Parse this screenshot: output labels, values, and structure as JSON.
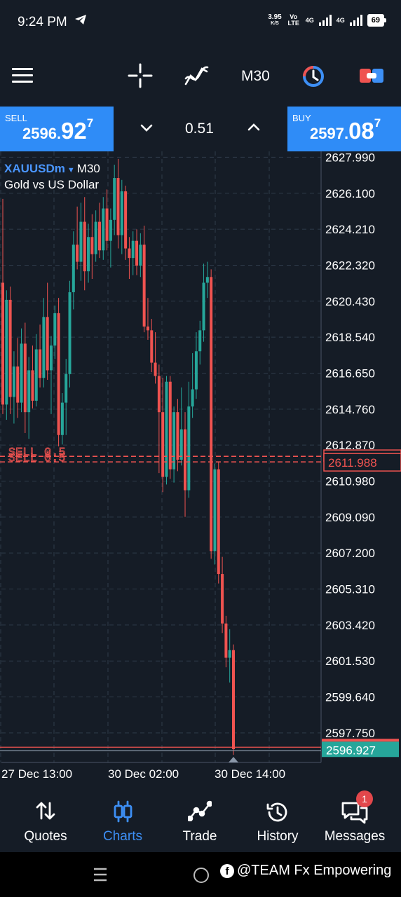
{
  "status_bar": {
    "time": "9:24 PM",
    "speed_value": "3.95",
    "speed_unit": "K/S",
    "volte": "Vo LTE",
    "net1": "4G",
    "net2": "4G",
    "battery": "69"
  },
  "toolbar": {
    "timeframe": "M30"
  },
  "trade_bar": {
    "sell_label": "SELL",
    "sell_price_head": "2596.",
    "sell_price_big": "92",
    "sell_price_sup": "7",
    "lot": "0.51",
    "buy_label": "BUY",
    "buy_price_head": "2597.",
    "buy_price_big": "08",
    "buy_price_sup": "7"
  },
  "chart_header": {
    "symbol": "XAUUSDm",
    "timeframe": "M30",
    "description": "Gold vs US Dollar"
  },
  "chart_data": {
    "type": "candlestick",
    "y_ticks": [
      "2627.990",
      "2626.100",
      "2624.210",
      "2622.320",
      "2620.430",
      "2618.540",
      "2616.650",
      "2614.760",
      "2612.870",
      "2610.980",
      "2609.090",
      "2607.200",
      "2605.310",
      "2603.420",
      "2601.530",
      "2599.640",
      "2597.750"
    ],
    "x_tick_labels": [
      "27 Dec 13:00",
      "30 Dec 02:00",
      "30 Dec 14:00"
    ],
    "ylim": [
      2596.2,
      2628.3
    ],
    "grid": true,
    "order_lines": [
      {
        "label": "SELL 0.5",
        "price": 2612.28
      },
      {
        "label": "SELL 0.5",
        "price": 2611.988
      }
    ],
    "order_price_label": "2611.988",
    "current_bid": 2596.927,
    "current_bid_label": "2596.927",
    "up_color": "#26a69a",
    "down_color": "#ef5350",
    "candles": [
      {
        "o": 2621.4,
        "h": 2625.8,
        "l": 2614.5,
        "c": 2615.0
      },
      {
        "o": 2615.0,
        "h": 2621.0,
        "l": 2614.2,
        "c": 2620.5
      },
      {
        "o": 2620.5,
        "h": 2621.2,
        "l": 2614.5,
        "c": 2615.4
      },
      {
        "o": 2615.4,
        "h": 2617.8,
        "l": 2614.0,
        "c": 2617.0
      },
      {
        "o": 2617.0,
        "h": 2618.5,
        "l": 2614.3,
        "c": 2615.1
      },
      {
        "o": 2615.1,
        "h": 2619.0,
        "l": 2614.6,
        "c": 2618.2
      },
      {
        "o": 2618.2,
        "h": 2619.3,
        "l": 2613.5,
        "c": 2614.6
      },
      {
        "o": 2614.6,
        "h": 2617.5,
        "l": 2613.2,
        "c": 2616.8
      },
      {
        "o": 2616.8,
        "h": 2618.1,
        "l": 2614.8,
        "c": 2615.2
      },
      {
        "o": 2615.2,
        "h": 2618.7,
        "l": 2614.9,
        "c": 2617.9
      },
      {
        "o": 2617.9,
        "h": 2619.2,
        "l": 2615.9,
        "c": 2616.4
      },
      {
        "o": 2616.4,
        "h": 2620.6,
        "l": 2615.9,
        "c": 2619.6
      },
      {
        "o": 2619.6,
        "h": 2621.4,
        "l": 2616.3,
        "c": 2616.8
      },
      {
        "o": 2616.8,
        "h": 2618.6,
        "l": 2614.5,
        "c": 2618.1
      },
      {
        "o": 2618.1,
        "h": 2620.2,
        "l": 2617.4,
        "c": 2619.8
      },
      {
        "o": 2619.8,
        "h": 2620.6,
        "l": 2612.8,
        "c": 2613.4
      },
      {
        "o": 2613.4,
        "h": 2615.6,
        "l": 2612.9,
        "c": 2615.1
      },
      {
        "o": 2615.1,
        "h": 2617.4,
        "l": 2613.4,
        "c": 2616.6
      },
      {
        "o": 2616.6,
        "h": 2621.5,
        "l": 2615.9,
        "c": 2620.9
      },
      {
        "o": 2620.9,
        "h": 2624.1,
        "l": 2620.0,
        "c": 2623.4
      },
      {
        "o": 2623.4,
        "h": 2625.4,
        "l": 2622.1,
        "c": 2622.5
      },
      {
        "o": 2622.5,
        "h": 2625.6,
        "l": 2621.5,
        "c": 2624.6
      },
      {
        "o": 2624.6,
        "h": 2625.9,
        "l": 2621.0,
        "c": 2622.0
      },
      {
        "o": 2622.0,
        "h": 2624.5,
        "l": 2621.4,
        "c": 2623.8
      },
      {
        "o": 2623.8,
        "h": 2625.0,
        "l": 2621.6,
        "c": 2622.9
      },
      {
        "o": 2622.9,
        "h": 2625.2,
        "l": 2622.5,
        "c": 2624.6
      },
      {
        "o": 2624.6,
        "h": 2625.6,
        "l": 2622.7,
        "c": 2623.1
      },
      {
        "o": 2623.1,
        "h": 2625.9,
        "l": 2622.6,
        "c": 2625.3
      },
      {
        "o": 2625.3,
        "h": 2626.3,
        "l": 2623.1,
        "c": 2623.6
      },
      {
        "o": 2623.6,
        "h": 2625.3,
        "l": 2622.2,
        "c": 2624.7
      },
      {
        "o": 2624.7,
        "h": 2627.6,
        "l": 2623.9,
        "c": 2626.9
      },
      {
        "o": 2626.9,
        "h": 2627.9,
        "l": 2623.2,
        "c": 2623.9
      },
      {
        "o": 2623.9,
        "h": 2626.8,
        "l": 2622.9,
        "c": 2626.2
      },
      {
        "o": 2626.2,
        "h": 2626.5,
        "l": 2622.6,
        "c": 2623.2
      },
      {
        "o": 2623.2,
        "h": 2623.8,
        "l": 2621.6,
        "c": 2622.7
      },
      {
        "o": 2622.7,
        "h": 2624.1,
        "l": 2621.8,
        "c": 2623.6
      },
      {
        "o": 2623.6,
        "h": 2624.2,
        "l": 2621.8,
        "c": 2622.3
      },
      {
        "o": 2622.3,
        "h": 2624.0,
        "l": 2621.7,
        "c": 2623.4
      },
      {
        "o": 2623.4,
        "h": 2624.4,
        "l": 2618.8,
        "c": 2619.1
      },
      {
        "o": 2619.1,
        "h": 2620.6,
        "l": 2618.4,
        "c": 2618.9
      },
      {
        "o": 2618.9,
        "h": 2619.5,
        "l": 2616.7,
        "c": 2617.2
      },
      {
        "o": 2617.2,
        "h": 2618.8,
        "l": 2616.1,
        "c": 2616.5
      },
      {
        "o": 2616.5,
        "h": 2617.1,
        "l": 2611.4,
        "c": 2614.6
      },
      {
        "o": 2614.6,
        "h": 2616.4,
        "l": 2610.4,
        "c": 2611.2
      },
      {
        "o": 2611.2,
        "h": 2616.5,
        "l": 2610.8,
        "c": 2616.2
      },
      {
        "o": 2616.2,
        "h": 2616.5,
        "l": 2611.1,
        "c": 2611.6
      },
      {
        "o": 2611.6,
        "h": 2614.9,
        "l": 2610.9,
        "c": 2614.6
      },
      {
        "o": 2614.6,
        "h": 2615.3,
        "l": 2611.5,
        "c": 2612.1
      },
      {
        "o": 2612.1,
        "h": 2615.9,
        "l": 2611.8,
        "c": 2613.7
      },
      {
        "o": 2613.7,
        "h": 2614.6,
        "l": 2609.1,
        "c": 2610.5
      },
      {
        "o": 2610.5,
        "h": 2616.2,
        "l": 2610.1,
        "c": 2614.9
      },
      {
        "o": 2614.9,
        "h": 2617.7,
        "l": 2614.3,
        "c": 2615.8
      },
      {
        "o": 2615.8,
        "h": 2618.8,
        "l": 2615.3,
        "c": 2617.8
      },
      {
        "o": 2617.8,
        "h": 2619.4,
        "l": 2617.1,
        "c": 2618.9
      },
      {
        "o": 2618.9,
        "h": 2622.4,
        "l": 2618.3,
        "c": 2621.4
      },
      {
        "o": 2621.4,
        "h": 2622.5,
        "l": 2620.6,
        "c": 2621.7
      },
      {
        "o": 2621.7,
        "h": 2622.1,
        "l": 2606.9,
        "c": 2607.3
      },
      {
        "o": 2607.3,
        "h": 2611.9,
        "l": 2606.6,
        "c": 2611.6
      },
      {
        "o": 2611.6,
        "h": 2612.0,
        "l": 2605.6,
        "c": 2606.1
      },
      {
        "o": 2606.1,
        "h": 2607.0,
        "l": 2603.0,
        "c": 2603.5
      },
      {
        "o": 2603.5,
        "h": 2603.9,
        "l": 2601.2,
        "c": 2601.7
      },
      {
        "o": 2601.7,
        "h": 2603.2,
        "l": 2600.4,
        "c": 2602.1
      },
      {
        "o": 2602.1,
        "h": 2602.4,
        "l": 2596.6,
        "c": 2596.9
      }
    ]
  },
  "bottom_nav": [
    {
      "label": "Quotes",
      "icon": "arrows-updown-icon"
    },
    {
      "label": "Charts",
      "icon": "candles-icon",
      "active": true
    },
    {
      "label": "Trade",
      "icon": "trend-line-icon"
    },
    {
      "label": "History",
      "icon": "history-clock-icon"
    },
    {
      "label": "Messages",
      "icon": "chat-bubbles-icon",
      "badge": "1"
    }
  ],
  "watermark": {
    "fb_glyph": "f",
    "text": "@TEAM Fx Empowering"
  }
}
